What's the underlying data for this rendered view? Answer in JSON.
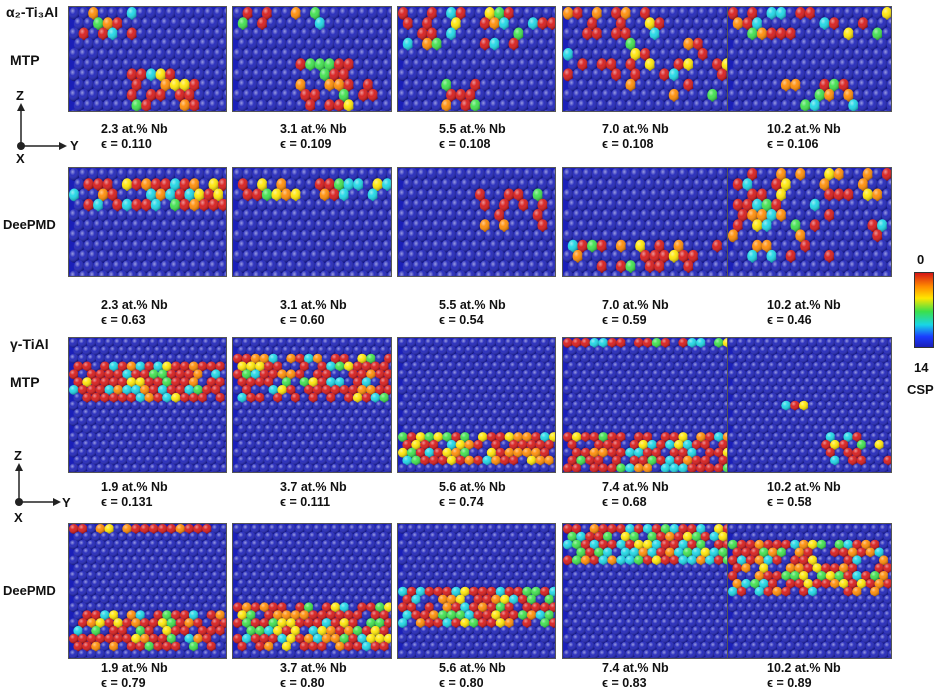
{
  "sections": {
    "alpha_label": "α₂-Ti₃Al",
    "gamma_label": "γ-TiAl"
  },
  "rows": [
    {
      "method": "MTP",
      "phase": "alpha",
      "captions": [
        {
          "comp": "2.3 at.% Nb",
          "strain": "ϵ = 0.110"
        },
        {
          "comp": "3.1 at.% Nb",
          "strain": "ϵ = 0.109"
        },
        {
          "comp": "5.5 at.% Nb",
          "strain": "ϵ = 0.108"
        },
        {
          "comp": "7.0 at.% Nb",
          "strain": "ϵ = 0.108"
        },
        {
          "comp": "10.2 at.% Nb",
          "strain": "ϵ = 0.106"
        }
      ]
    },
    {
      "method": "DeePMD",
      "phase": "alpha",
      "captions": [
        {
          "comp": "2.3 at.% Nb",
          "strain": "ϵ = 0.63"
        },
        {
          "comp": "3.1 at.% Nb",
          "strain": "ϵ = 0.60"
        },
        {
          "comp": "5.5 at.% Nb",
          "strain": "ϵ = 0.54"
        },
        {
          "comp": "7.0 at.% Nb",
          "strain": "ϵ = 0.59"
        },
        {
          "comp": "10.2 at.% Nb",
          "strain": "ϵ = 0.46"
        }
      ]
    },
    {
      "method": "MTP",
      "phase": "gamma",
      "captions": [
        {
          "comp": "1.9 at.% Nb",
          "strain": "ϵ = 0.131"
        },
        {
          "comp": "3.7 at.% Nb",
          "strain": "ϵ = 0.111"
        },
        {
          "comp": "5.6 at.% Nb",
          "strain": "ϵ = 0.74"
        },
        {
          "comp": "7.4 at.% Nb",
          "strain": "ϵ = 0.68"
        },
        {
          "comp": "10.2 at.% Nb",
          "strain": "ϵ = 0.58"
        }
      ]
    },
    {
      "method": "DeePMD",
      "phase": "gamma",
      "captions": [
        {
          "comp": "1.9 at.% Nb",
          "strain": "ϵ = 0.79"
        },
        {
          "comp": "3.7 at.% Nb",
          "strain": "ϵ = 0.80"
        },
        {
          "comp": "5.6 at.% Nb",
          "strain": "ϵ = 0.80"
        },
        {
          "comp": "7.4 at.% Nb",
          "strain": "ϵ = 0.83"
        },
        {
          "comp": "10.2 at.% Nb",
          "strain": "ϵ = 0.89"
        }
      ]
    }
  ],
  "axes": {
    "z": "Z",
    "y": "Y",
    "x": "X"
  },
  "colorbar": {
    "min": "0",
    "max": "14",
    "label": "CSP",
    "colors": [
      "#d61515",
      "#ff8a00",
      "#ffe600",
      "#3be04a",
      "#18d6e6",
      "#1a3cff",
      "#1a1fb8"
    ]
  },
  "atom_base_color": "#1a1fb8"
}
